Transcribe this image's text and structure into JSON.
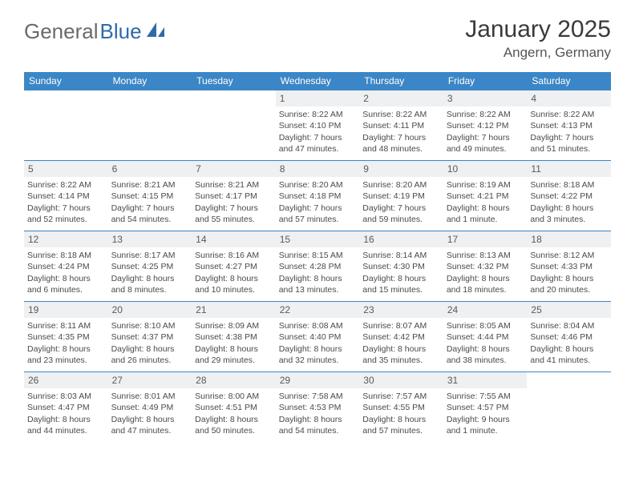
{
  "header": {
    "logo_part1": "General",
    "logo_part2": "Blue",
    "month_title": "January 2025",
    "location": "Angern, Germany"
  },
  "colors": {
    "accent": "#3b86c6",
    "daynum_bg": "#eef0f2",
    "text": "#4a4a4a",
    "logo_gray": "#6a6a6a",
    "logo_blue": "#2f6aa8"
  },
  "days_of_week": [
    "Sunday",
    "Monday",
    "Tuesday",
    "Wednesday",
    "Thursday",
    "Friday",
    "Saturday"
  ],
  "leading_blanks": 3,
  "days": [
    {
      "n": "1",
      "sunrise": "8:22 AM",
      "sunset": "4:10 PM",
      "daylight": "7 hours and 47 minutes."
    },
    {
      "n": "2",
      "sunrise": "8:22 AM",
      "sunset": "4:11 PM",
      "daylight": "7 hours and 48 minutes."
    },
    {
      "n": "3",
      "sunrise": "8:22 AM",
      "sunset": "4:12 PM",
      "daylight": "7 hours and 49 minutes."
    },
    {
      "n": "4",
      "sunrise": "8:22 AM",
      "sunset": "4:13 PM",
      "daylight": "7 hours and 51 minutes."
    },
    {
      "n": "5",
      "sunrise": "8:22 AM",
      "sunset": "4:14 PM",
      "daylight": "7 hours and 52 minutes."
    },
    {
      "n": "6",
      "sunrise": "8:21 AM",
      "sunset": "4:15 PM",
      "daylight": "7 hours and 54 minutes."
    },
    {
      "n": "7",
      "sunrise": "8:21 AM",
      "sunset": "4:17 PM",
      "daylight": "7 hours and 55 minutes."
    },
    {
      "n": "8",
      "sunrise": "8:20 AM",
      "sunset": "4:18 PM",
      "daylight": "7 hours and 57 minutes."
    },
    {
      "n": "9",
      "sunrise": "8:20 AM",
      "sunset": "4:19 PM",
      "daylight": "7 hours and 59 minutes."
    },
    {
      "n": "10",
      "sunrise": "8:19 AM",
      "sunset": "4:21 PM",
      "daylight": "8 hours and 1 minute."
    },
    {
      "n": "11",
      "sunrise": "8:18 AM",
      "sunset": "4:22 PM",
      "daylight": "8 hours and 3 minutes."
    },
    {
      "n": "12",
      "sunrise": "8:18 AM",
      "sunset": "4:24 PM",
      "daylight": "8 hours and 6 minutes."
    },
    {
      "n": "13",
      "sunrise": "8:17 AM",
      "sunset": "4:25 PM",
      "daylight": "8 hours and 8 minutes."
    },
    {
      "n": "14",
      "sunrise": "8:16 AM",
      "sunset": "4:27 PM",
      "daylight": "8 hours and 10 minutes."
    },
    {
      "n": "15",
      "sunrise": "8:15 AM",
      "sunset": "4:28 PM",
      "daylight": "8 hours and 13 minutes."
    },
    {
      "n": "16",
      "sunrise": "8:14 AM",
      "sunset": "4:30 PM",
      "daylight": "8 hours and 15 minutes."
    },
    {
      "n": "17",
      "sunrise": "8:13 AM",
      "sunset": "4:32 PM",
      "daylight": "8 hours and 18 minutes."
    },
    {
      "n": "18",
      "sunrise": "8:12 AM",
      "sunset": "4:33 PM",
      "daylight": "8 hours and 20 minutes."
    },
    {
      "n": "19",
      "sunrise": "8:11 AM",
      "sunset": "4:35 PM",
      "daylight": "8 hours and 23 minutes."
    },
    {
      "n": "20",
      "sunrise": "8:10 AM",
      "sunset": "4:37 PM",
      "daylight": "8 hours and 26 minutes."
    },
    {
      "n": "21",
      "sunrise": "8:09 AM",
      "sunset": "4:38 PM",
      "daylight": "8 hours and 29 minutes."
    },
    {
      "n": "22",
      "sunrise": "8:08 AM",
      "sunset": "4:40 PM",
      "daylight": "8 hours and 32 minutes."
    },
    {
      "n": "23",
      "sunrise": "8:07 AM",
      "sunset": "4:42 PM",
      "daylight": "8 hours and 35 minutes."
    },
    {
      "n": "24",
      "sunrise": "8:05 AM",
      "sunset": "4:44 PM",
      "daylight": "8 hours and 38 minutes."
    },
    {
      "n": "25",
      "sunrise": "8:04 AM",
      "sunset": "4:46 PM",
      "daylight": "8 hours and 41 minutes."
    },
    {
      "n": "26",
      "sunrise": "8:03 AM",
      "sunset": "4:47 PM",
      "daylight": "8 hours and 44 minutes."
    },
    {
      "n": "27",
      "sunrise": "8:01 AM",
      "sunset": "4:49 PM",
      "daylight": "8 hours and 47 minutes."
    },
    {
      "n": "28",
      "sunrise": "8:00 AM",
      "sunset": "4:51 PM",
      "daylight": "8 hours and 50 minutes."
    },
    {
      "n": "29",
      "sunrise": "7:58 AM",
      "sunset": "4:53 PM",
      "daylight": "8 hours and 54 minutes."
    },
    {
      "n": "30",
      "sunrise": "7:57 AM",
      "sunset": "4:55 PM",
      "daylight": "8 hours and 57 minutes."
    },
    {
      "n": "31",
      "sunrise": "7:55 AM",
      "sunset": "4:57 PM",
      "daylight": "9 hours and 1 minute."
    }
  ],
  "labels": {
    "sunrise": "Sunrise: ",
    "sunset": "Sunset: ",
    "daylight": "Daylight: "
  }
}
